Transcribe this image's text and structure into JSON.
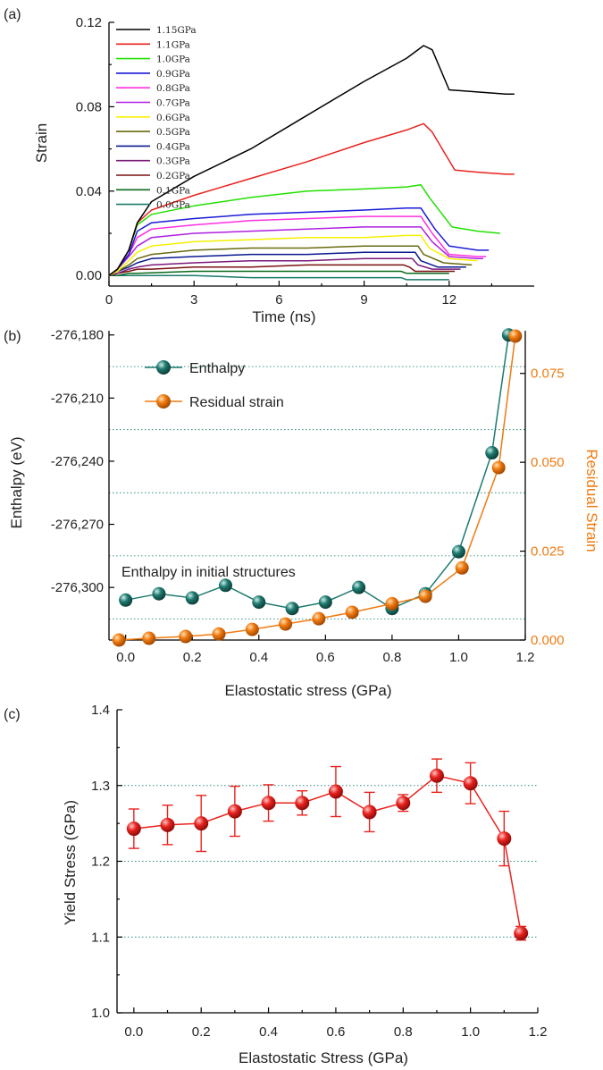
{
  "chart_data": [
    {
      "panel": "(a)",
      "type": "line",
      "xlabel": "Time (ns)",
      "ylabel": "Strain",
      "xlim": [
        0,
        15
      ],
      "ylim": [
        -0.005,
        0.12
      ],
      "xticks": [
        "0",
        "3",
        "6",
        "9",
        "12"
      ],
      "yticks": [
        "0.00",
        "0.04",
        "0.08",
        "0.12"
      ],
      "series": [
        {
          "name": "1.15GPa",
          "color": "#000000",
          "points": [
            [
              0,
              0
            ],
            [
              0.3,
              0.003
            ],
            [
              0.7,
              0.012
            ],
            [
              1,
              0.025
            ],
            [
              1.5,
              0.035
            ],
            [
              3,
              0.047
            ],
            [
              5,
              0.06
            ],
            [
              7,
              0.076
            ],
            [
              9,
              0.092
            ],
            [
              10.5,
              0.103
            ],
            [
              11.1,
              0.109
            ],
            [
              11.4,
              0.107
            ],
            [
              12,
              0.088
            ],
            [
              13,
              0.087
            ],
            [
              14,
              0.086
            ],
            [
              14.3,
              0.086
            ]
          ]
        },
        {
          "name": "1.1GPa",
          "color": "#e8231f",
          "points": [
            [
              0,
              0
            ],
            [
              0.3,
              0.003
            ],
            [
              0.7,
              0.012
            ],
            [
              1,
              0.025
            ],
            [
              1.5,
              0.031
            ],
            [
              3,
              0.038
            ],
            [
              5,
              0.046
            ],
            [
              7,
              0.054
            ],
            [
              9,
              0.063
            ],
            [
              10.5,
              0.069
            ],
            [
              11.1,
              0.072
            ],
            [
              11.4,
              0.068
            ],
            [
              12.2,
              0.05
            ],
            [
              13,
              0.049
            ],
            [
              14,
              0.048
            ],
            [
              14.3,
              0.048
            ]
          ]
        },
        {
          "name": "1.0GPa",
          "color": "#22e000",
          "points": [
            [
              0,
              0
            ],
            [
              0.3,
              0.003
            ],
            [
              0.7,
              0.012
            ],
            [
              1,
              0.024
            ],
            [
              1.5,
              0.029
            ],
            [
              3,
              0.033
            ],
            [
              5,
              0.037
            ],
            [
              7,
              0.04
            ],
            [
              9,
              0.041
            ],
            [
              10.5,
              0.042
            ],
            [
              11,
              0.043
            ],
            [
              11.3,
              0.037
            ],
            [
              12.1,
              0.023
            ],
            [
              13,
              0.021
            ],
            [
              13.8,
              0.02
            ]
          ]
        },
        {
          "name": "0.9GPa",
          "color": "#1a1ad6",
          "points": [
            [
              0,
              0
            ],
            [
              0.3,
              0.003
            ],
            [
              0.7,
              0.01
            ],
            [
              1,
              0.021
            ],
            [
              1.5,
              0.025
            ],
            [
              3,
              0.027
            ],
            [
              5,
              0.029
            ],
            [
              7,
              0.03
            ],
            [
              9,
              0.031
            ],
            [
              10.5,
              0.032
            ],
            [
              11,
              0.032
            ],
            [
              11.5,
              0.022
            ],
            [
              12,
              0.014
            ],
            [
              13,
              0.012
            ],
            [
              13.4,
              0.012
            ]
          ]
        },
        {
          "name": "0.8GPa",
          "color": "#ff30e0",
          "points": [
            [
              0,
              0
            ],
            [
              0.3,
              0.003
            ],
            [
              0.7,
              0.01
            ],
            [
              1,
              0.018
            ],
            [
              1.5,
              0.022
            ],
            [
              3,
              0.024
            ],
            [
              5,
              0.026
            ],
            [
              7,
              0.027
            ],
            [
              9,
              0.028
            ],
            [
              10.5,
              0.028
            ],
            [
              11,
              0.028
            ],
            [
              11.4,
              0.02
            ],
            [
              12,
              0.01
            ],
            [
              13,
              0.009
            ],
            [
              13.3,
              0.009
            ]
          ]
        },
        {
          "name": "0.7GPa",
          "color": "#b020e0",
          "points": [
            [
              0,
              0
            ],
            [
              0.3,
              0.003
            ],
            [
              0.7,
              0.009
            ],
            [
              1,
              0.014
            ],
            [
              1.5,
              0.018
            ],
            [
              3,
              0.02
            ],
            [
              5,
              0.021
            ],
            [
              7,
              0.022
            ],
            [
              9,
              0.023
            ],
            [
              10.5,
              0.023
            ],
            [
              11,
              0.023
            ],
            [
              11.4,
              0.016
            ],
            [
              12,
              0.009
            ],
            [
              13,
              0.008
            ],
            [
              13.2,
              0.008
            ]
          ]
        },
        {
          "name": "0.6GPa",
          "color": "#f6f000",
          "points": [
            [
              0,
              0
            ],
            [
              0.3,
              0.002
            ],
            [
              0.7,
              0.007
            ],
            [
              1,
              0.011
            ],
            [
              1.5,
              0.014
            ],
            [
              3,
              0.016
            ],
            [
              5,
              0.017
            ],
            [
              7,
              0.018
            ],
            [
              9,
              0.018
            ],
            [
              10.5,
              0.019
            ],
            [
              11,
              0.019
            ],
            [
              11.3,
              0.013
            ],
            [
              12,
              0.008
            ],
            [
              13,
              0.007
            ]
          ]
        },
        {
          "name": "0.5GPa",
          "color": "#6a6a10",
          "points": [
            [
              0,
              0
            ],
            [
              0.3,
              0.002
            ],
            [
              0.7,
              0.005
            ],
            [
              1,
              0.008
            ],
            [
              1.5,
              0.01
            ],
            [
              3,
              0.012
            ],
            [
              5,
              0.013
            ],
            [
              7,
              0.013
            ],
            [
              9,
              0.014
            ],
            [
              10.5,
              0.014
            ],
            [
              10.9,
              0.014
            ],
            [
              11.1,
              0.01
            ],
            [
              11.8,
              0.006
            ],
            [
              12.8,
              0.005
            ]
          ]
        },
        {
          "name": "0.4GPa",
          "color": "#0a1a90",
          "points": [
            [
              0,
              0
            ],
            [
              0.3,
              0.002
            ],
            [
              0.7,
              0.004
            ],
            [
              1,
              0.006
            ],
            [
              1.5,
              0.008
            ],
            [
              3,
              0.009
            ],
            [
              5,
              0.01
            ],
            [
              7,
              0.01
            ],
            [
              9,
              0.011
            ],
            [
              10.5,
              0.011
            ],
            [
              10.8,
              0.011
            ],
            [
              11,
              0.007
            ],
            [
              11.6,
              0.004
            ],
            [
              12.6,
              0.004
            ]
          ]
        },
        {
          "name": "0.3GPa",
          "color": "#7a1a7a",
          "points": [
            [
              0,
              0
            ],
            [
              0.3,
              0.001
            ],
            [
              0.7,
              0.003
            ],
            [
              1,
              0.004
            ],
            [
              1.5,
              0.005
            ],
            [
              3,
              0.006
            ],
            [
              5,
              0.007
            ],
            [
              7,
              0.007
            ],
            [
              9,
              0.008
            ],
            [
              10.5,
              0.008
            ],
            [
              10.7,
              0.008
            ],
            [
              10.9,
              0.005
            ],
            [
              11.4,
              0.003
            ],
            [
              12.4,
              0.003
            ]
          ]
        },
        {
          "name": "0.2GPa",
          "color": "#7a1010",
          "points": [
            [
              0,
              0
            ],
            [
              0.3,
              0.001
            ],
            [
              0.7,
              0.002
            ],
            [
              1,
              0.003
            ],
            [
              1.5,
              0.003
            ],
            [
              3,
              0.004
            ],
            [
              5,
              0.004
            ],
            [
              7,
              0.005
            ],
            [
              9,
              0.005
            ],
            [
              10.4,
              0.005
            ],
            [
              10.6,
              0.004
            ],
            [
              10.8,
              0.002
            ],
            [
              11.2,
              0.002
            ],
            [
              12.2,
              0.002
            ]
          ]
        },
        {
          "name": "0.1GPa",
          "color": "#0a6a1a",
          "points": [
            [
              0,
              0
            ],
            [
              0.3,
              0.0
            ],
            [
              0.7,
              0.001
            ],
            [
              1,
              0.001
            ],
            [
              3,
              0.002
            ],
            [
              5,
              0.002
            ],
            [
              7,
              0.002
            ],
            [
              9,
              0.002
            ],
            [
              10.3,
              0.002
            ],
            [
              10.5,
              0.001
            ],
            [
              10.7,
              0.001
            ],
            [
              12,
              0.001
            ]
          ]
        },
        {
          "name": "0.0GPa",
          "color": "#1a7a6a",
          "points": [
            [
              0,
              0
            ],
            [
              1,
              0.0
            ],
            [
              3,
              0.0
            ],
            [
              5,
              -0.001
            ],
            [
              7,
              -0.001
            ],
            [
              9,
              -0.001
            ],
            [
              10.3,
              -0.001
            ],
            [
              10.5,
              -0.002
            ],
            [
              12,
              -0.002
            ]
          ]
        }
      ]
    },
    {
      "panel": "(b)",
      "type": "scatter",
      "xlabel": "Elastostatic stress (GPa)",
      "ylabel": "Enthalpy (eV)",
      "ylabel_right": "Residual Strain",
      "xlim": [
        -0.05,
        1.2
      ],
      "ylim_left": [
        -276325,
        -276178
      ],
      "ylim_right": [
        0,
        0.087
      ],
      "xticks": [
        "0.0",
        "0.2",
        "0.4",
        "0.6",
        "0.8",
        "1.0",
        "1.2"
      ],
      "yticks_left": [
        "-276,180",
        "-276,210",
        "-276,240",
        "-276,270",
        "-276,300"
      ],
      "yticks_right": [
        "0.000",
        "0.025",
        "0.050",
        "0.075"
      ],
      "annotation": "Enthalpy in initial structures",
      "series": [
        {
          "name": "Enthalpy",
          "color": "#1e7a70",
          "axis": "left",
          "x": [
            0.0,
            0.1,
            0.2,
            0.3,
            0.4,
            0.5,
            0.6,
            0.7,
            0.8,
            0.9,
            1.0,
            1.1,
            1.15
          ],
          "y": [
            -276306,
            -276303,
            -276305,
            -276299,
            -276307,
            -276310,
            -276307,
            -276300,
            -276310,
            -276303,
            -276283,
            -276236,
            -276180
          ]
        },
        {
          "name": "Residual strain",
          "color": "#f07a10",
          "axis": "right",
          "x": [
            -0.02,
            0.07,
            0.18,
            0.28,
            0.38,
            0.48,
            0.58,
            0.68,
            0.8,
            0.9,
            1.01,
            1.12,
            1.17
          ],
          "y": [
            0.0,
            0.0005,
            0.001,
            0.0017,
            0.003,
            0.0045,
            0.006,
            0.0078,
            0.0102,
            0.0123,
            0.0203,
            0.0485,
            0.0855
          ]
        }
      ]
    },
    {
      "panel": "(c)",
      "type": "scatter",
      "xlabel": "Elastostatic Stress (GPa)",
      "ylabel": "Yield Stress (GPa)",
      "xlim": [
        -0.05,
        1.2
      ],
      "ylim": [
        1.0,
        1.4
      ],
      "xticks": [
        "0.0",
        "0.2",
        "0.4",
        "0.6",
        "0.8",
        "1.0",
        "1.2"
      ],
      "yticks": [
        "1.0",
        "1.1",
        "1.2",
        "1.3",
        "1.4"
      ],
      "gridlines_y": [
        1.1,
        1.2,
        1.3
      ],
      "series": [
        {
          "name": "Yield stress",
          "color": "#e8231f",
          "x": [
            0.0,
            0.1,
            0.2,
            0.3,
            0.4,
            0.5,
            0.6,
            0.7,
            0.8,
            0.9,
            1.0,
            1.1,
            1.15
          ],
          "y": [
            1.243,
            1.248,
            1.25,
            1.266,
            1.277,
            1.277,
            1.292,
            1.265,
            1.277,
            1.313,
            1.303,
            1.23,
            1.105
          ],
          "err": [
            0.026,
            0.026,
            0.037,
            0.033,
            0.024,
            0.016,
            0.033,
            0.026,
            0.011,
            0.022,
            0.027,
            0.036,
            0.009
          ]
        }
      ]
    }
  ]
}
